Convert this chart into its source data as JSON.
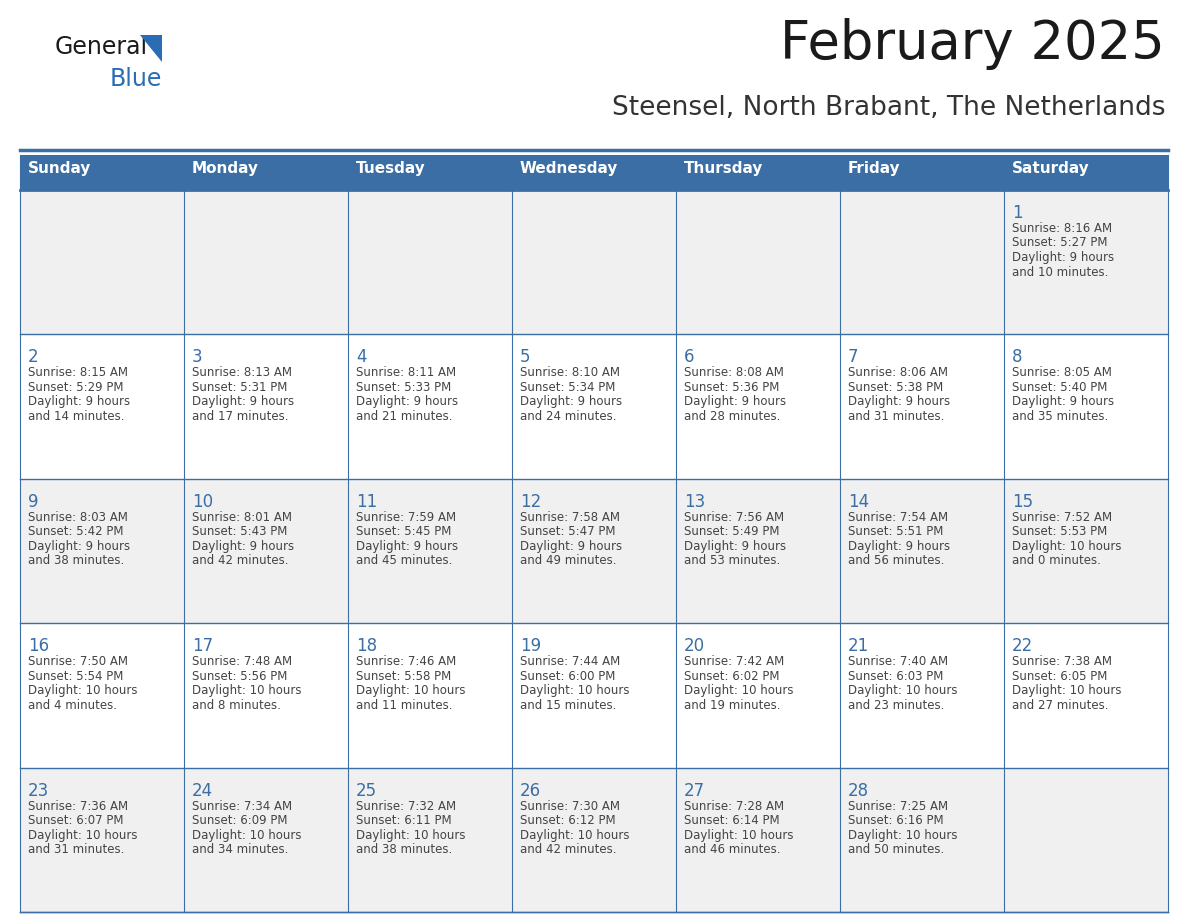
{
  "title": "February 2025",
  "subtitle": "Steensel, North Brabant, The Netherlands",
  "days_of_week": [
    "Sunday",
    "Monday",
    "Tuesday",
    "Wednesday",
    "Thursday",
    "Friday",
    "Saturday"
  ],
  "header_bg": "#3a6ea5",
  "header_text": "#ffffff",
  "row_bg_light": "#f0f0f0",
  "row_bg_white": "#ffffff",
  "border_color": "#3a6ea5",
  "day_number_color": "#3a6ea5",
  "cell_text_color": "#444444",
  "background_color": "#ffffff",
  "title_color": "#1a1a1a",
  "subtitle_color": "#333333",
  "logo_general_color": "#1a1a1a",
  "logo_blue_color": "#2a6db5",
  "calendar_data": [
    [
      null,
      null,
      null,
      null,
      null,
      null,
      {
        "day": 1,
        "sunrise": "8:16 AM",
        "sunset": "5:27 PM",
        "daylight": "9 hours\nand 10 minutes."
      }
    ],
    [
      {
        "day": 2,
        "sunrise": "8:15 AM",
        "sunset": "5:29 PM",
        "daylight": "9 hours\nand 14 minutes."
      },
      {
        "day": 3,
        "sunrise": "8:13 AM",
        "sunset": "5:31 PM",
        "daylight": "9 hours\nand 17 minutes."
      },
      {
        "day": 4,
        "sunrise": "8:11 AM",
        "sunset": "5:33 PM",
        "daylight": "9 hours\nand 21 minutes."
      },
      {
        "day": 5,
        "sunrise": "8:10 AM",
        "sunset": "5:34 PM",
        "daylight": "9 hours\nand 24 minutes."
      },
      {
        "day": 6,
        "sunrise": "8:08 AM",
        "sunset": "5:36 PM",
        "daylight": "9 hours\nand 28 minutes."
      },
      {
        "day": 7,
        "sunrise": "8:06 AM",
        "sunset": "5:38 PM",
        "daylight": "9 hours\nand 31 minutes."
      },
      {
        "day": 8,
        "sunrise": "8:05 AM",
        "sunset": "5:40 PM",
        "daylight": "9 hours\nand 35 minutes."
      }
    ],
    [
      {
        "day": 9,
        "sunrise": "8:03 AM",
        "sunset": "5:42 PM",
        "daylight": "9 hours\nand 38 minutes."
      },
      {
        "day": 10,
        "sunrise": "8:01 AM",
        "sunset": "5:43 PM",
        "daylight": "9 hours\nand 42 minutes."
      },
      {
        "day": 11,
        "sunrise": "7:59 AM",
        "sunset": "5:45 PM",
        "daylight": "9 hours\nand 45 minutes."
      },
      {
        "day": 12,
        "sunrise": "7:58 AM",
        "sunset": "5:47 PM",
        "daylight": "9 hours\nand 49 minutes."
      },
      {
        "day": 13,
        "sunrise": "7:56 AM",
        "sunset": "5:49 PM",
        "daylight": "9 hours\nand 53 minutes."
      },
      {
        "day": 14,
        "sunrise": "7:54 AM",
        "sunset": "5:51 PM",
        "daylight": "9 hours\nand 56 minutes."
      },
      {
        "day": 15,
        "sunrise": "7:52 AM",
        "sunset": "5:53 PM",
        "daylight": "10 hours\nand 0 minutes."
      }
    ],
    [
      {
        "day": 16,
        "sunrise": "7:50 AM",
        "sunset": "5:54 PM",
        "daylight": "10 hours\nand 4 minutes."
      },
      {
        "day": 17,
        "sunrise": "7:48 AM",
        "sunset": "5:56 PM",
        "daylight": "10 hours\nand 8 minutes."
      },
      {
        "day": 18,
        "sunrise": "7:46 AM",
        "sunset": "5:58 PM",
        "daylight": "10 hours\nand 11 minutes."
      },
      {
        "day": 19,
        "sunrise": "7:44 AM",
        "sunset": "6:00 PM",
        "daylight": "10 hours\nand 15 minutes."
      },
      {
        "day": 20,
        "sunrise": "7:42 AM",
        "sunset": "6:02 PM",
        "daylight": "10 hours\nand 19 minutes."
      },
      {
        "day": 21,
        "sunrise": "7:40 AM",
        "sunset": "6:03 PM",
        "daylight": "10 hours\nand 23 minutes."
      },
      {
        "day": 22,
        "sunrise": "7:38 AM",
        "sunset": "6:05 PM",
        "daylight": "10 hours\nand 27 minutes."
      }
    ],
    [
      {
        "day": 23,
        "sunrise": "7:36 AM",
        "sunset": "6:07 PM",
        "daylight": "10 hours\nand 31 minutes."
      },
      {
        "day": 24,
        "sunrise": "7:34 AM",
        "sunset": "6:09 PM",
        "daylight": "10 hours\nand 34 minutes."
      },
      {
        "day": 25,
        "sunrise": "7:32 AM",
        "sunset": "6:11 PM",
        "daylight": "10 hours\nand 38 minutes."
      },
      {
        "day": 26,
        "sunrise": "7:30 AM",
        "sunset": "6:12 PM",
        "daylight": "10 hours\nand 42 minutes."
      },
      {
        "day": 27,
        "sunrise": "7:28 AM",
        "sunset": "6:14 PM",
        "daylight": "10 hours\nand 46 minutes."
      },
      {
        "day": 28,
        "sunrise": "7:25 AM",
        "sunset": "6:16 PM",
        "daylight": "10 hours\nand 50 minutes."
      },
      null
    ]
  ]
}
